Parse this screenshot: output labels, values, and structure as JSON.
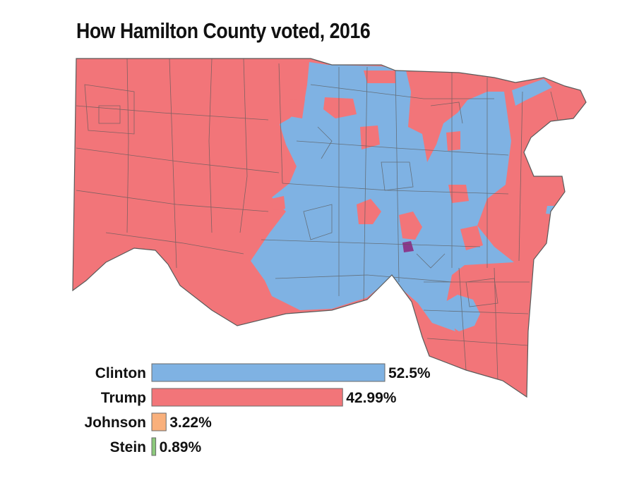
{
  "title": "How Hamilton County voted, 2016",
  "colors": {
    "clinton": "#7fb2e3",
    "trump": "#f27579",
    "johnson": "#f9b07c",
    "stein": "#8cc97c",
    "tie": "#8a3a8c",
    "precinct_border": "#5a5a5a"
  },
  "chart_data": {
    "type": "bar",
    "orientation": "horizontal",
    "categories": [
      "Clinton",
      "Trump",
      "Johnson",
      "Stein"
    ],
    "values": [
      52.5,
      42.99,
      3.22,
      0.89
    ],
    "value_labels": [
      "52.5%",
      "42.99%",
      "3.22%",
      "0.89%"
    ],
    "unit": "%",
    "xlim": [
      0,
      52.5
    ]
  }
}
